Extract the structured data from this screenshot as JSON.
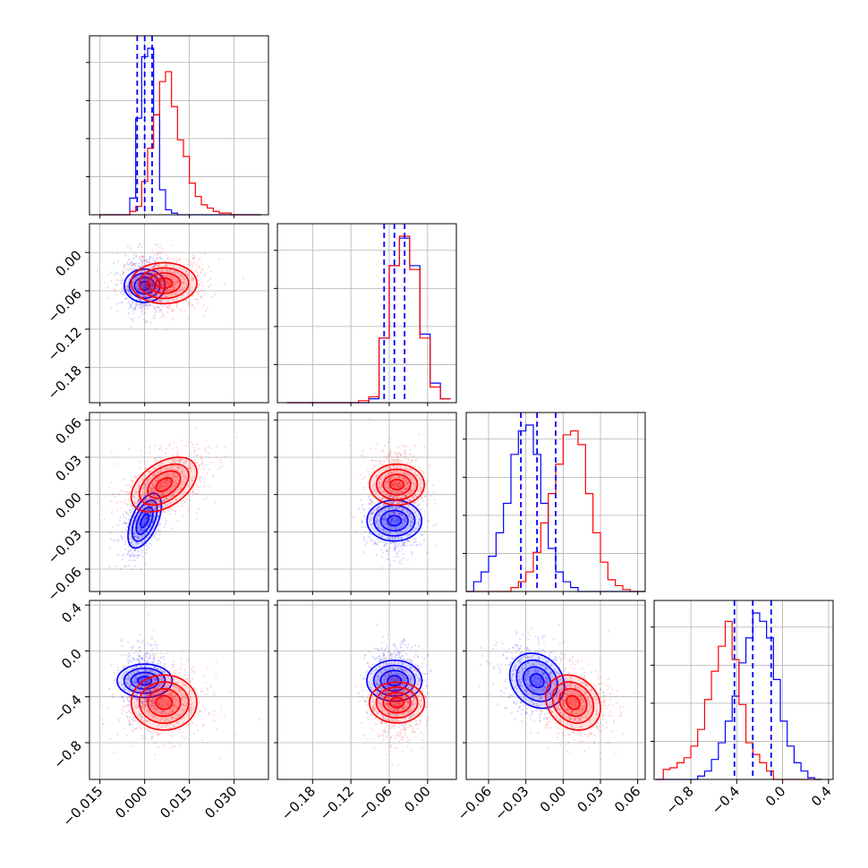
{
  "chart_data": {
    "type": "corner",
    "series": [
      {
        "name": "",
        "color": "#0000ff",
        "mean": [
          0.0,
          -0.052,
          -0.021,
          -0.26
        ],
        "std": [
          0.0028,
          0.016,
          0.011,
          0.12
        ],
        "corr": [
          [
            1,
            0,
            0.55,
            0
          ],
          [
            0,
            1,
            0,
            0
          ],
          [
            0.55,
            0,
            1,
            -0.2
          ],
          [
            0,
            0,
            -0.2,
            1
          ]
        ],
        "quantiles": [
          [
            -0.0025,
            0.0,
            0.0025
          ],
          [
            -0.068,
            -0.052,
            -0.036
          ],
          [
            -0.034,
            -0.021,
            -0.006
          ],
          [
            -0.42,
            -0.26,
            -0.1
          ]
        ]
      },
      {
        "name": "",
        "color": "#ff0000",
        "mean": [
          0.0065,
          -0.048,
          0.008,
          -0.45
        ],
        "std": [
          0.0055,
          0.016,
          0.011,
          0.12
        ],
        "corr": [
          [
            1,
            0,
            0.45,
            0
          ],
          [
            0,
            1,
            0,
            0
          ],
          [
            0.45,
            0,
            1,
            -0.2
          ],
          [
            0,
            0,
            -0.2,
            1
          ]
        ],
        "quantiles": []
      }
    ],
    "histograms": [
      {
        "edges": [
          -0.015,
          -0.013,
          -0.011,
          -0.009,
          -0.007,
          -0.005,
          -0.003,
          -0.001,
          0.001,
          0.003,
          0.005,
          0.007,
          0.009,
          0.011,
          0.013,
          0.015,
          0.017,
          0.019,
          0.021,
          0.023,
          0.025,
          0.027,
          0.029,
          0.031,
          0.033,
          0.035,
          0.037,
          0.039
        ],
        "blue": [
          0,
          0,
          0,
          0,
          0,
          0.1,
          0.58,
          0.95,
          1.0,
          0.6,
          0.15,
          0.03,
          0.01,
          0,
          0,
          0,
          0,
          0,
          0,
          0,
          0,
          0,
          0,
          0,
          0,
          0,
          0
        ],
        "red": [
          0,
          0,
          0,
          0,
          0,
          0.02,
          0.05,
          0.2,
          0.4,
          0.6,
          0.8,
          0.86,
          0.65,
          0.45,
          0.35,
          0.19,
          0.11,
          0.06,
          0.04,
          0.02,
          0.01,
          0.01,
          0,
          0,
          0,
          0,
          0
        ]
      },
      {
        "edges": [
          -0.22,
          -0.204,
          -0.188,
          -0.172,
          -0.156,
          -0.14,
          -0.124,
          -0.108,
          -0.092,
          -0.076,
          -0.06,
          -0.044,
          -0.028,
          -0.012,
          0.004,
          0.02,
          0.036
        ],
        "blue": [
          0,
          0,
          0,
          0,
          0,
          0,
          0,
          0,
          0.02,
          0.33,
          0.7,
          0.84,
          0.7,
          0.35,
          0.1,
          0.02
        ],
        "red": [
          0,
          0,
          0,
          0,
          0,
          0,
          0,
          0.01,
          0.03,
          0.33,
          0.7,
          0.85,
          0.68,
          0.33,
          0.08,
          0.02
        ]
      },
      {
        "edges": [
          -0.078,
          -0.072,
          -0.066,
          -0.06,
          -0.054,
          -0.048,
          -0.042,
          -0.036,
          -0.03,
          -0.024,
          -0.018,
          -0.012,
          -0.006,
          0.0,
          0.006,
          0.012,
          0.018,
          0.024,
          0.03,
          0.036,
          0.042,
          0.048,
          0.054,
          0.06,
          0.066
        ],
        "blue": [
          0,
          0.05,
          0.1,
          0.18,
          0.3,
          0.45,
          0.7,
          0.82,
          0.85,
          0.7,
          0.45,
          0.22,
          0.1,
          0.05,
          0.02,
          0,
          0,
          0,
          0,
          0,
          0,
          0,
          0,
          0
        ],
        "red": [
          0,
          0,
          0,
          0,
          0,
          0,
          0.02,
          0.05,
          0.1,
          0.2,
          0.35,
          0.5,
          0.65,
          0.8,
          0.82,
          0.75,
          0.5,
          0.3,
          0.15,
          0.06,
          0.03,
          0.01,
          0,
          0
        ]
      },
      {
        "edges": [
          -1.1,
          -1.04,
          -0.98,
          -0.92,
          -0.86,
          -0.8,
          -0.74,
          -0.68,
          -0.62,
          -0.56,
          -0.5,
          -0.44,
          -0.38,
          -0.32,
          -0.26,
          -0.2,
          -0.14,
          -0.08,
          -0.02,
          0.04,
          0.1,
          0.16,
          0.22,
          0.28,
          0.34
        ],
        "blue": [
          0,
          0,
          0,
          0,
          0,
          0,
          0.02,
          0.05,
          0.12,
          0.22,
          0.35,
          0.5,
          0.7,
          0.85,
          1.0,
          0.95,
          0.85,
          0.6,
          0.35,
          0.2,
          0.1,
          0.05,
          0.01,
          0
        ],
        "red": [
          0,
          0.06,
          0.07,
          0.1,
          0.13,
          0.2,
          0.3,
          0.48,
          0.65,
          0.8,
          0.95,
          0.72,
          0.45,
          0.22,
          0.15,
          0.1,
          0.05,
          0,
          0,
          0,
          0,
          0,
          0,
          0
        ]
      }
    ],
    "ranges": [
      [
        -0.0185,
        0.0415
      ],
      [
        -0.235,
        0.045
      ],
      [
        -0.078,
        0.066
      ],
      [
        -1.12,
        0.44
      ]
    ],
    "ticks": [
      [
        -0.015,
        0.0,
        0.015,
        0.03
      ],
      [
        -0.18,
        -0.12,
        -0.06,
        0.0
      ],
      [
        -0.06,
        -0.03,
        0.0,
        0.03,
        0.06
      ],
      [
        -0.8,
        -0.4,
        0.0,
        0.4
      ]
    ],
    "tick_labels": [
      [
        "−0.015",
        "0.000",
        "0.015",
        "0.030"
      ],
      [
        "−0.18",
        "−0.12",
        "−0.06",
        "0.00"
      ],
      [
        "−0.06",
        "−0.03",
        "0.00",
        "0.03",
        "0.06"
      ],
      [
        "−0.8",
        "−0.4",
        "0.0",
        "0.4"
      ]
    ],
    "grid": true,
    "title": "",
    "xlabel": "",
    "ylabel": ""
  }
}
